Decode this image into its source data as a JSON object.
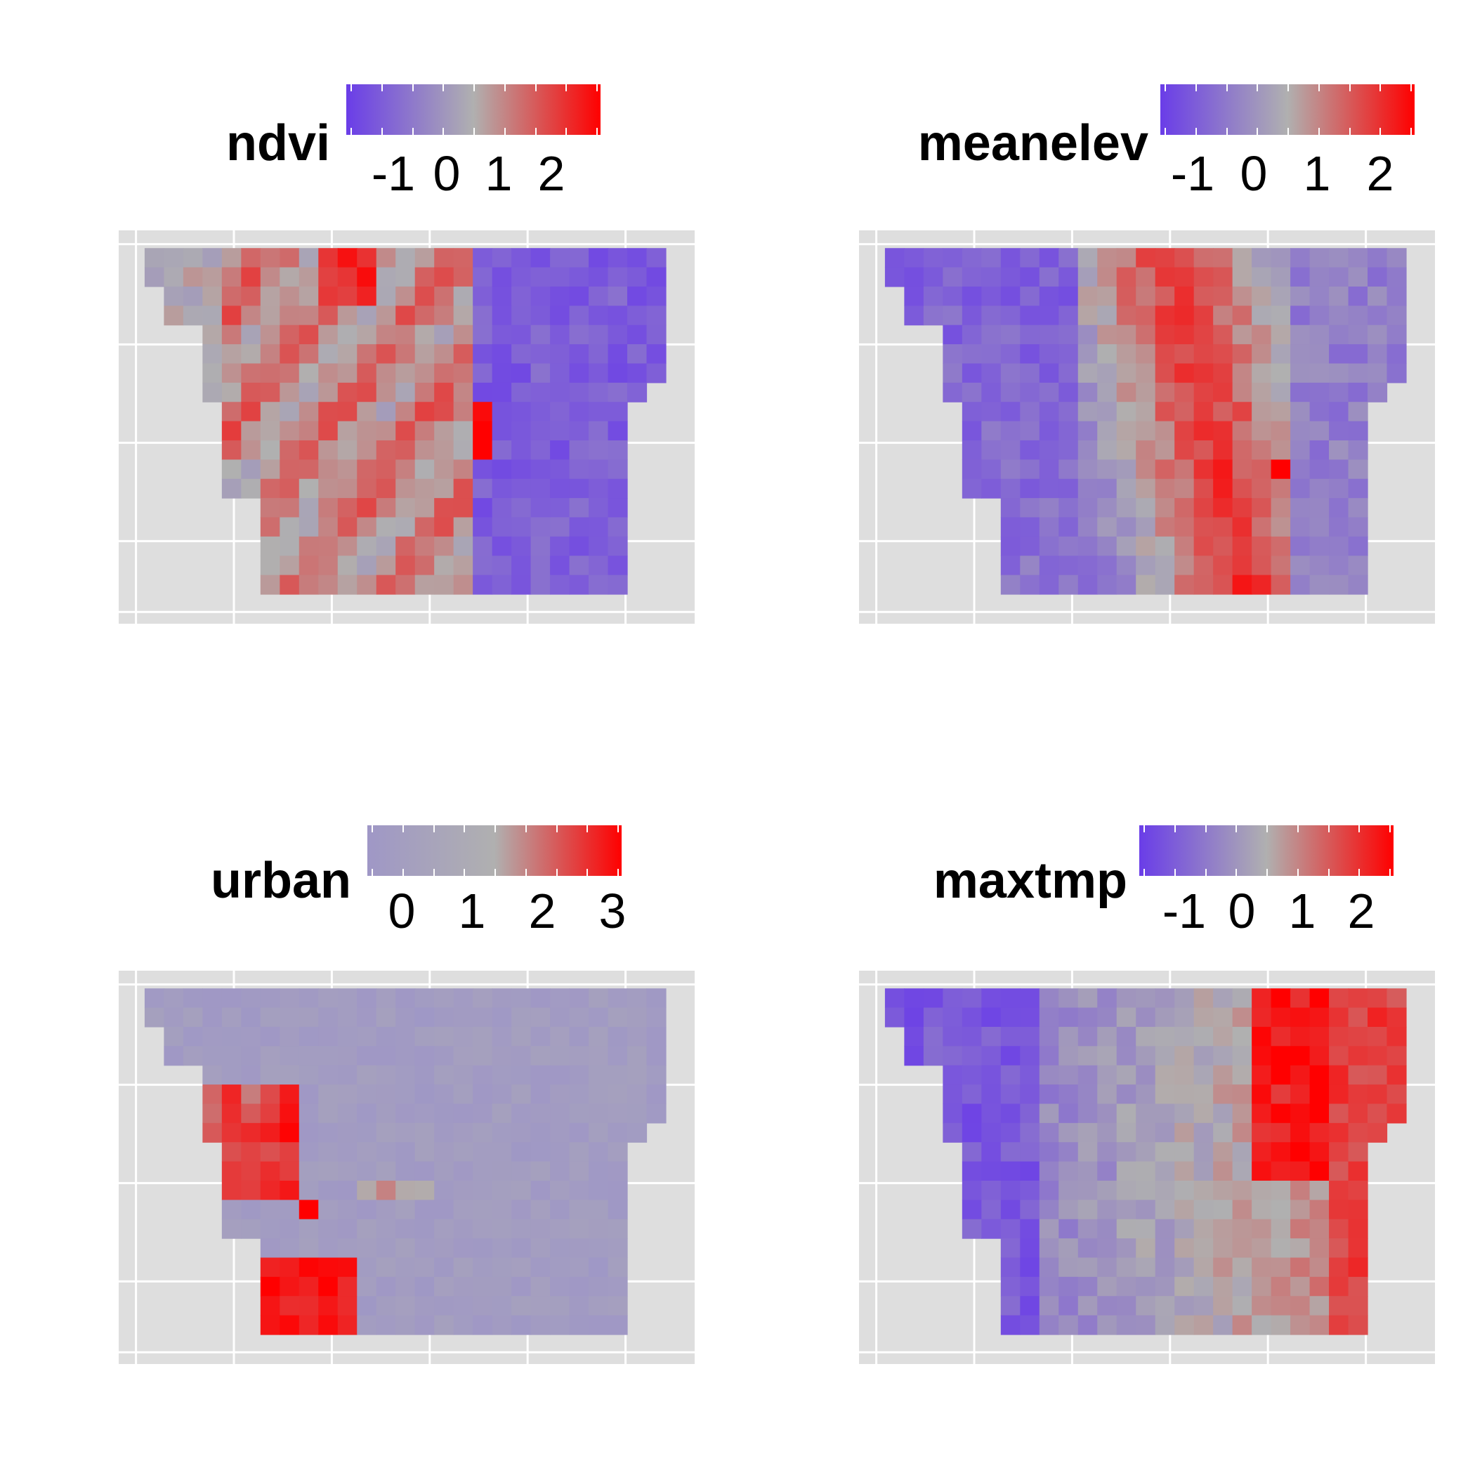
{
  "chart_data": [
    {
      "type": "heatmap",
      "title": "ndvi",
      "legend_ticks": [
        "-1",
        "0",
        "1",
        "2"
      ],
      "legend_colors": [
        "#6a3de8",
        "#b0b0b0",
        "#ff0000"
      ],
      "grid": true,
      "seed": 11,
      "pattern": "ndvi"
    },
    {
      "type": "heatmap",
      "title": "meanelev",
      "legend_ticks": [
        "-1",
        "0",
        "1",
        "2"
      ],
      "legend_colors": [
        "#6a3de8",
        "#b0b0b0",
        "#ff0000"
      ],
      "grid": true,
      "seed": 23,
      "pattern": "meanelev"
    },
    {
      "type": "heatmap",
      "title": "urban",
      "legend_ticks": [
        "0",
        "1",
        "2",
        "3"
      ],
      "legend_colors": [
        "#9f97c6",
        "#b0b0b0",
        "#ff0000"
      ],
      "grid": true,
      "seed": 37,
      "pattern": "urban"
    },
    {
      "type": "heatmap",
      "title": "maxtmp",
      "legend_ticks": [
        "-1",
        "0",
        "1",
        "2"
      ],
      "legend_colors": [
        "#6a3de8",
        "#b0b0b0",
        "#ff0000"
      ],
      "grid": true,
      "seed": 53,
      "pattern": "maxtmp"
    }
  ]
}
